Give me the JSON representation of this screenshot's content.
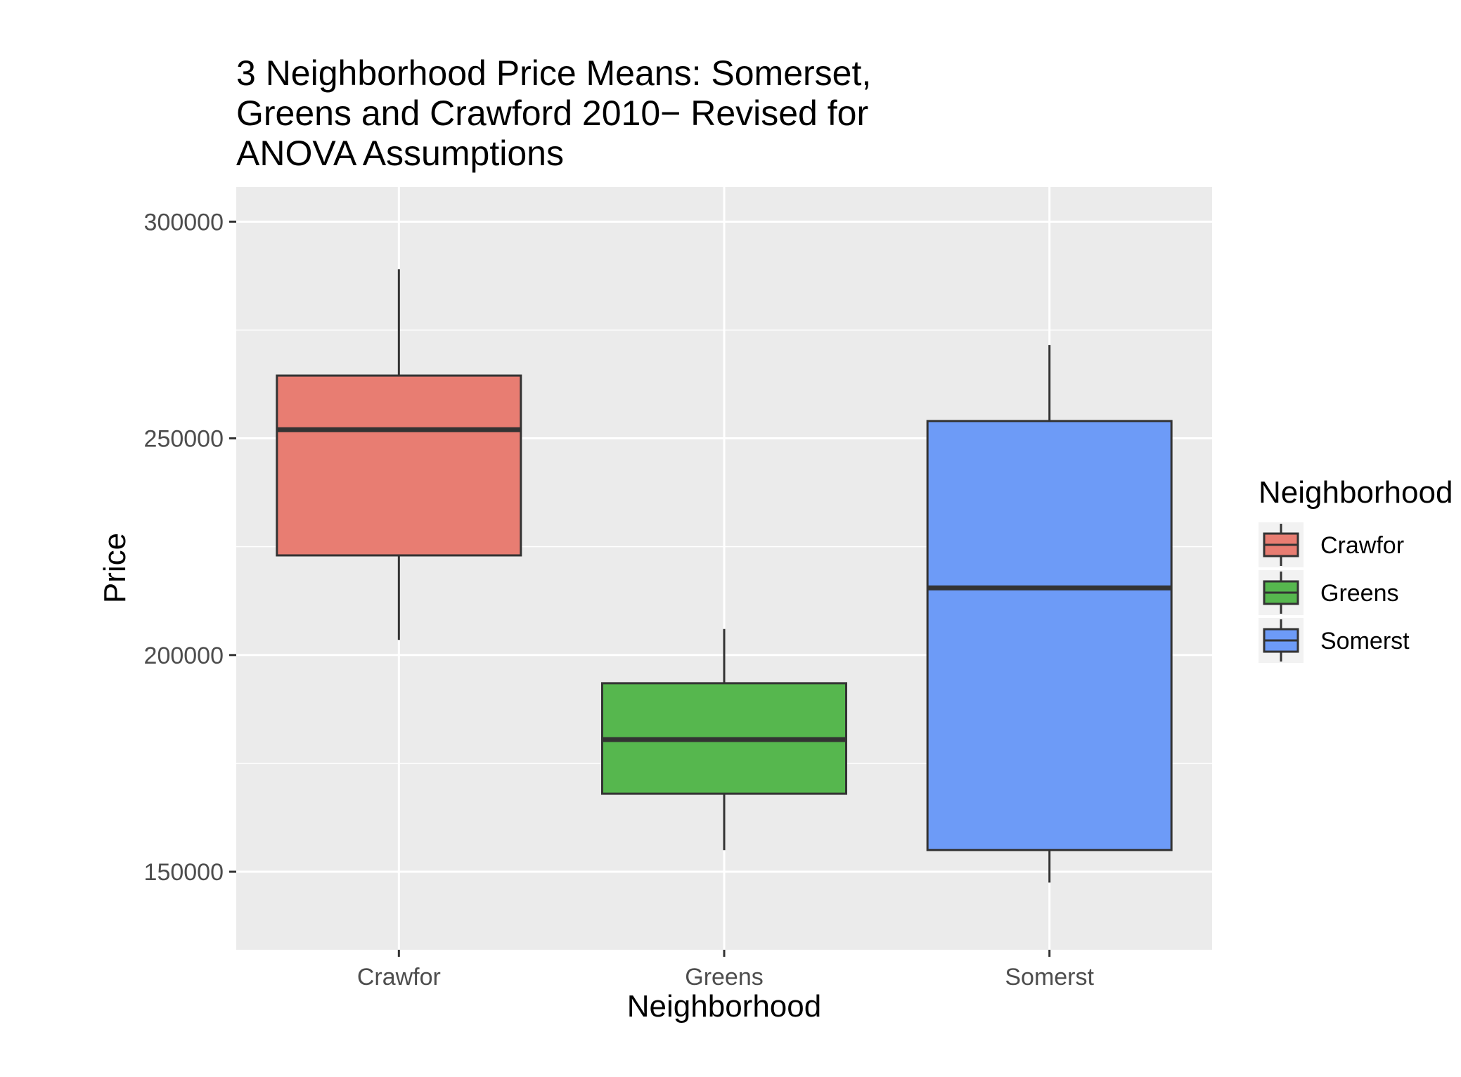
{
  "chart_data": {
    "type": "box",
    "title_lines": [
      "3 Neighborhood Price Means: Somerset,",
      "Greens and Crawford 2010− Revised for",
      "ANOVA Assumptions"
    ],
    "xlabel": "Neighborhood",
    "ylabel": "Price",
    "ylim": [
      132000,
      308000
    ],
    "y_ticks": [
      150000,
      200000,
      250000,
      300000
    ],
    "y_tick_labels": [
      "150000",
      "200000",
      "250000",
      "300000"
    ],
    "categories": [
      "Crawfor",
      "Greens",
      "Somerst"
    ],
    "series": [
      {
        "name": "Crawfor",
        "whisker_low": 203500,
        "q1": 223000,
        "median": 252000,
        "q3": 264500,
        "whisker_high": 289000,
        "color": "#E87D72"
      },
      {
        "name": "Greens",
        "whisker_low": 155000,
        "q1": 168000,
        "median": 180500,
        "q3": 193500,
        "whisker_high": 206000,
        "color": "#56B74E"
      },
      {
        "name": "Somerst",
        "whisker_low": 147500,
        "q1": 155000,
        "median": 215500,
        "q3": 254000,
        "whisker_high": 271500,
        "color": "#6D9BF7"
      }
    ],
    "legend": {
      "title": "Neighborhood",
      "position": "right",
      "items": [
        "Crawfor",
        "Greens",
        "Somerst"
      ]
    },
    "grid": true,
    "panel_background": "#EBEBEB"
  }
}
